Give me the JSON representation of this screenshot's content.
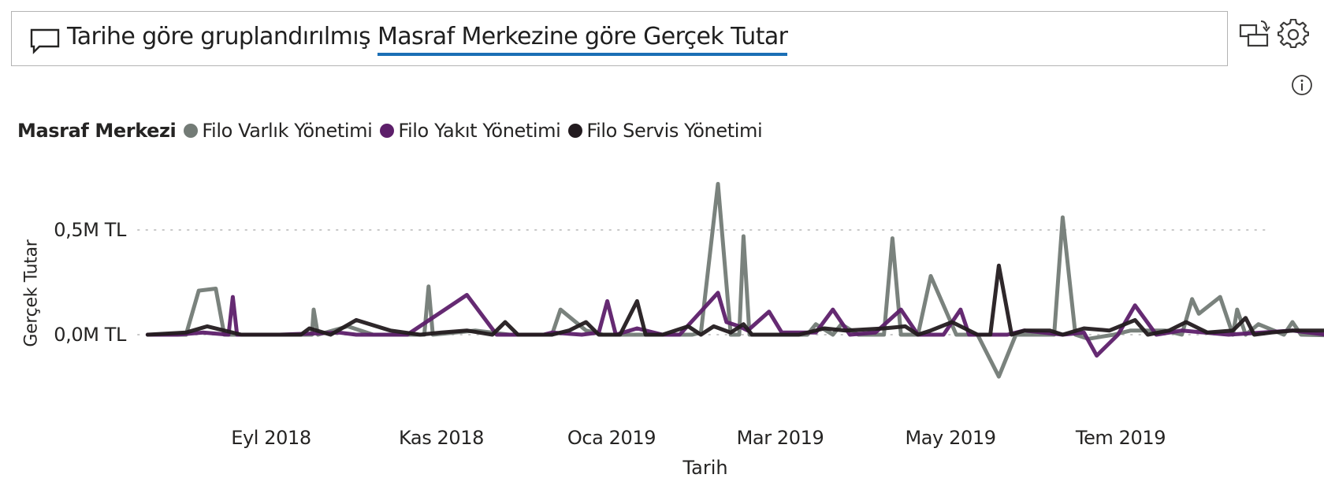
{
  "header": {
    "title_prefix": "Tarihe göre gruplandırılmış ",
    "title_highlight": "Masraf Merkezine göre Gerçek Tutar",
    "icons": [
      "comment-icon",
      "switch-visual-icon",
      "settings-gear-icon",
      "info-icon"
    ]
  },
  "legend": {
    "title": "Masraf Merkezi",
    "items": [
      {
        "label": "Filo Varlık Yönetimi",
        "color": "#737b76"
      },
      {
        "label": "Filo Yakıt Yönetimi",
        "color": "#5d1f6a"
      },
      {
        "label": "Filo Servis Yönetimi",
        "color": "#231b1f"
      }
    ]
  },
  "axes": {
    "y_title": "Gerçek Tutar",
    "y_ticks": [
      "0,5M TL",
      "0,0M TL"
    ],
    "x_title": "Tarih",
    "x_ticks": [
      "Eyl 2018",
      "Kas 2018",
      "Oca 2019",
      "Mar 2019",
      "May 2019",
      "Tem 2019"
    ]
  },
  "chart_data": {
    "type": "line",
    "title": "Tarihe göre gruplandırılmış Masraf Merkezine göre Gerçek Tutar",
    "xlabel": "Tarih",
    "ylabel": "Gerçek Tutar",
    "ylim": [
      -0.2,
      0.75
    ],
    "y_unit": "M TL",
    "grid": "dotted horizontal at 0,0M and 0,5M",
    "legend_position": "top-left",
    "x_tick_labels": [
      "Eyl 2018",
      "Kas 2018",
      "Oca 2019",
      "Mar 2019",
      "May 2019",
      "Tem 2019"
    ],
    "x_note": "x given as approximate fractional month offset (0 = 1 Eyl 2018); values in millions TL, estimated",
    "series": [
      {
        "name": "Filo Varlık Yönetimi",
        "color": "#737b76",
        "points": [
          [
            -1.45,
            0
          ],
          [
            -1.0,
            0
          ],
          [
            -0.85,
            0.21
          ],
          [
            -0.65,
            0.22
          ],
          [
            -0.55,
            0
          ],
          [
            0.1,
            0
          ],
          [
            0.3,
            0
          ],
          [
            0.48,
            0
          ],
          [
            0.5,
            0.12
          ],
          [
            0.55,
            0
          ],
          [
            0.9,
            0.04
          ],
          [
            1.2,
            0
          ],
          [
            1.8,
            0
          ],
          [
            1.85,
            0.23
          ],
          [
            1.9,
            0
          ],
          [
            2.4,
            0.02
          ],
          [
            2.8,
            0
          ],
          [
            3.3,
            0
          ],
          [
            3.4,
            0.12
          ],
          [
            3.7,
            0.02
          ],
          [
            3.9,
            0
          ],
          [
            4.3,
            0
          ],
          [
            4.45,
            0
          ],
          [
            4.95,
            0
          ],
          [
            5.05,
            0.01
          ],
          [
            5.25,
            0.72
          ],
          [
            5.4,
            0
          ],
          [
            5.5,
            0
          ],
          [
            5.55,
            0.47
          ],
          [
            5.62,
            0
          ],
          [
            6.3,
            0
          ],
          [
            6.4,
            0.05
          ],
          [
            6.6,
            0
          ],
          [
            6.7,
            0.05
          ],
          [
            6.9,
            0
          ],
          [
            7.2,
            0
          ],
          [
            7.3,
            0.46
          ],
          [
            7.4,
            0
          ],
          [
            7.6,
            0
          ],
          [
            7.75,
            0.28
          ],
          [
            8.05,
            0
          ],
          [
            8.3,
            0
          ],
          [
            8.55,
            -0.2
          ],
          [
            8.75,
            0
          ],
          [
            9.2,
            0
          ],
          [
            9.3,
            0.56
          ],
          [
            9.45,
            0
          ],
          [
            9.6,
            -0.02
          ],
          [
            9.9,
            0
          ],
          [
            10.1,
            0.02
          ],
          [
            10.5,
            0.02
          ],
          [
            10.7,
            0
          ],
          [
            10.82,
            0.17
          ],
          [
            10.9,
            0.1
          ],
          [
            11.15,
            0.18
          ],
          [
            11.3,
            0
          ],
          [
            11.35,
            0.12
          ],
          [
            11.45,
            0
          ],
          [
            11.6,
            0.05
          ],
          [
            11.9,
            0
          ],
          [
            12.0,
            0.06
          ],
          [
            12.1,
            0
          ],
          [
            13.3,
            -0.01
          ],
          [
            14.1,
            -0.02
          ],
          [
            14.3,
            -0.06
          ]
        ]
      },
      {
        "name": "Filo Yakıt Yönetimi",
        "color": "#5d1f6a",
        "points": [
          [
            -1.45,
            0
          ],
          [
            -1.1,
            0
          ],
          [
            -0.8,
            0.01
          ],
          [
            -0.5,
            0
          ],
          [
            -0.45,
            0.18
          ],
          [
            -0.4,
            0
          ],
          [
            0.1,
            0
          ],
          [
            0.8,
            0.01
          ],
          [
            1.0,
            0
          ],
          [
            1.3,
            0
          ],
          [
            1.6,
            0
          ],
          [
            2.3,
            0.19
          ],
          [
            2.65,
            0
          ],
          [
            3.0,
            0
          ],
          [
            3.2,
            0
          ],
          [
            3.3,
            0.01
          ],
          [
            3.65,
            0
          ],
          [
            3.85,
            0.01
          ],
          [
            3.95,
            0.16
          ],
          [
            4.05,
            0
          ],
          [
            4.3,
            0.03
          ],
          [
            4.6,
            0
          ],
          [
            4.8,
            0
          ],
          [
            5.25,
            0.2
          ],
          [
            5.35,
            0.06
          ],
          [
            5.5,
            0.04
          ],
          [
            5.6,
            0.02
          ],
          [
            5.85,
            0.11
          ],
          [
            6.0,
            0.01
          ],
          [
            6.4,
            0.01
          ],
          [
            6.6,
            0.12
          ],
          [
            6.8,
            0
          ],
          [
            7.1,
            0.01
          ],
          [
            7.4,
            0.12
          ],
          [
            7.6,
            0
          ],
          [
            7.9,
            0
          ],
          [
            8.1,
            0.12
          ],
          [
            8.2,
            0
          ],
          [
            8.65,
            0
          ],
          [
            8.85,
            0.02
          ],
          [
            9.3,
            0
          ],
          [
            9.55,
            0.01
          ],
          [
            9.7,
            -0.1
          ],
          [
            9.95,
            0
          ],
          [
            10.15,
            0.14
          ],
          [
            10.4,
            0
          ],
          [
            10.7,
            0.02
          ],
          [
            11.25,
            0
          ],
          [
            12.0,
            0.02
          ],
          [
            12.4,
            0
          ],
          [
            13.3,
            0.01
          ],
          [
            14.0,
            0
          ],
          [
            14.3,
            0
          ]
        ]
      },
      {
        "name": "Filo Servis Yönetimi",
        "color": "#231b1f",
        "points": [
          [
            -1.45,
            0
          ],
          [
            -1.0,
            0.01
          ],
          [
            -0.75,
            0.04
          ],
          [
            -0.35,
            0
          ],
          [
            0.1,
            0
          ],
          [
            0.35,
            0
          ],
          [
            0.45,
            0.03
          ],
          [
            0.7,
            0
          ],
          [
            1.0,
            0.07
          ],
          [
            1.4,
            0.02
          ],
          [
            1.75,
            0
          ],
          [
            2.0,
            0.01
          ],
          [
            2.3,
            0.02
          ],
          [
            2.6,
            0
          ],
          [
            2.75,
            0.06
          ],
          [
            2.9,
            0
          ],
          [
            3.3,
            0
          ],
          [
            3.5,
            0.02
          ],
          [
            3.7,
            0.06
          ],
          [
            3.85,
            0
          ],
          [
            4.1,
            0
          ],
          [
            4.3,
            0.16
          ],
          [
            4.4,
            0
          ],
          [
            4.6,
            0
          ],
          [
            4.9,
            0.04
          ],
          [
            5.05,
            0
          ],
          [
            5.2,
            0.04
          ],
          [
            5.4,
            0.01
          ],
          [
            5.55,
            0.05
          ],
          [
            5.65,
            0
          ],
          [
            6.2,
            0
          ],
          [
            6.5,
            0.03
          ],
          [
            6.75,
            0.02
          ],
          [
            7.2,
            0.03
          ],
          [
            7.45,
            0.04
          ],
          [
            7.6,
            0
          ],
          [
            7.75,
            0.02
          ],
          [
            8.0,
            0.06
          ],
          [
            8.3,
            0
          ],
          [
            8.45,
            0
          ],
          [
            8.55,
            0.33
          ],
          [
            8.7,
            0
          ],
          [
            8.85,
            0.02
          ],
          [
            9.15,
            0.02
          ],
          [
            9.3,
            0
          ],
          [
            9.55,
            0.03
          ],
          [
            9.85,
            0.02
          ],
          [
            10.15,
            0.07
          ],
          [
            10.3,
            0
          ],
          [
            10.55,
            0.02
          ],
          [
            10.75,
            0.06
          ],
          [
            11.0,
            0.01
          ],
          [
            11.3,
            0.02
          ],
          [
            11.45,
            0.08
          ],
          [
            11.55,
            0
          ],
          [
            11.75,
            0.01
          ],
          [
            12.0,
            0.02
          ],
          [
            12.8,
            0.02
          ],
          [
            14.05,
            0.03
          ]
        ]
      }
    ]
  }
}
